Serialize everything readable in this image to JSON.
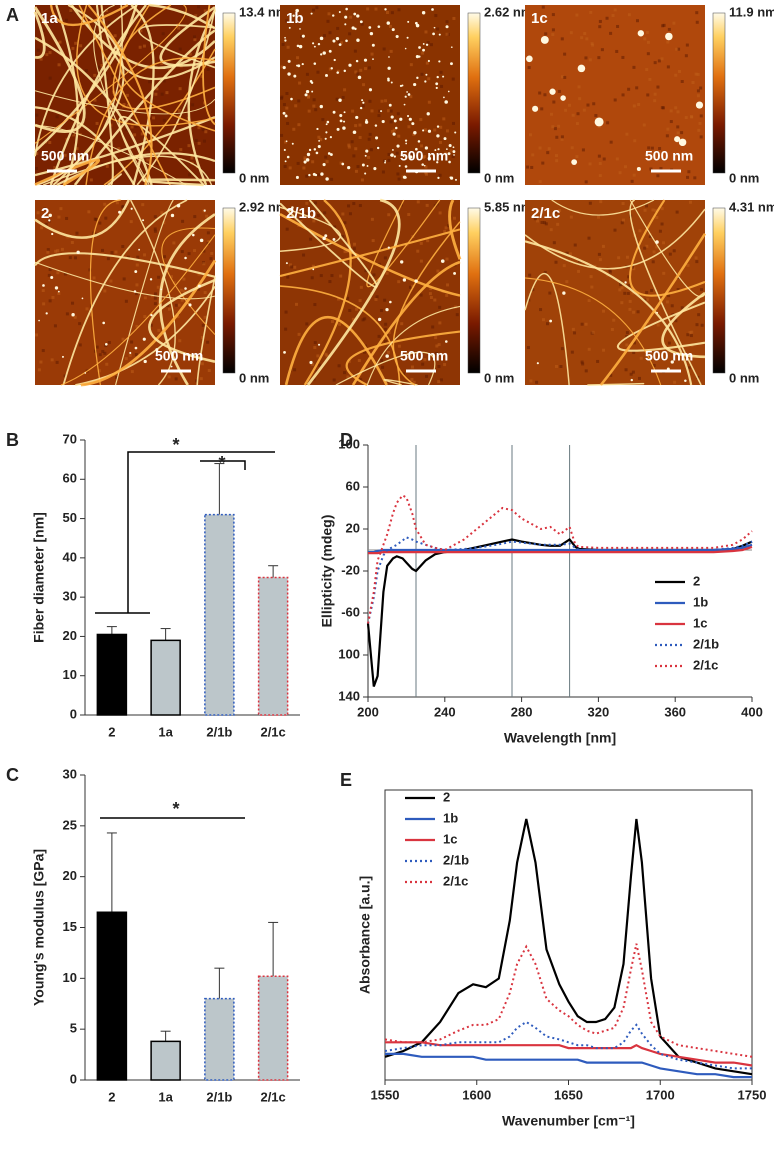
{
  "panel_a": {
    "label": "A",
    "images": [
      {
        "label": "1a",
        "max": "13.4 nm",
        "min": "0 nm",
        "scale": "500 nm"
      },
      {
        "label": "1b",
        "max": "2.62 nm",
        "min": "0 nm",
        "scale": "500 nm"
      },
      {
        "label": "1c",
        "max": "11.9 nm",
        "min": "0 nm",
        "scale": "500 nm"
      },
      {
        "label": "2",
        "max": "2.92 nm",
        "min": "0 nm",
        "scale": "500 nm"
      },
      {
        "label": "2/1b",
        "max": "5.85 nm",
        "min": "0 nm",
        "scale": "500 nm"
      },
      {
        "label": "2/1c",
        "max": "4.31 nm",
        "min": "0 nm",
        "scale": "500 nm"
      }
    ]
  },
  "chart_data": [
    {
      "type": "bar",
      "label": "B",
      "ylabel": "Fiber diameter [nm]",
      "categories": [
        "2",
        "1a",
        "2/1b",
        "2/1c"
      ],
      "values": [
        20.5,
        19,
        51,
        35
      ],
      "errors": [
        2,
        3,
        13,
        3
      ],
      "colors": [
        "#000000",
        "#bcc6ca",
        "#bcc6ca",
        "#bcc6ca"
      ],
      "edge_colors": [
        "#000000",
        "#000000",
        "#2e5bbd",
        "#d9343f"
      ],
      "edge_dashed": [
        false,
        false,
        true,
        true
      ],
      "ylim": [
        0,
        70
      ],
      "yticks": [
        0,
        10,
        20,
        30,
        40,
        50,
        60,
        70
      ],
      "annotations": [
        "*",
        "*"
      ]
    },
    {
      "type": "bar",
      "label": "C",
      "ylabel": "Young's modulus [GPa]",
      "categories": [
        "2",
        "1a",
        "2/1b",
        "2/1c"
      ],
      "values": [
        16.5,
        3.8,
        8,
        10.2
      ],
      "errors": [
        7.8,
        1,
        3,
        5.3
      ],
      "colors": [
        "#000000",
        "#bcc6ca",
        "#bcc6ca",
        "#bcc6ca"
      ],
      "edge_colors": [
        "#000000",
        "#000000",
        "#2e5bbd",
        "#d9343f"
      ],
      "edge_dashed": [
        false,
        false,
        true,
        true
      ],
      "ylim": [
        0,
        30
      ],
      "yticks": [
        0,
        5,
        10,
        15,
        20,
        25,
        30
      ],
      "annotations": [
        "*"
      ]
    },
    {
      "type": "line",
      "label": "D",
      "ylabel": "Ellipticity (mdeg)",
      "xlabel": "Wavelength [nm]",
      "x": [
        200,
        203,
        205,
        208,
        210,
        213,
        215,
        218,
        220,
        223,
        225,
        230,
        235,
        240,
        250,
        260,
        270,
        275,
        280,
        290,
        295,
        300,
        305,
        308,
        310,
        320,
        340,
        360,
        380,
        390,
        395,
        400
      ],
      "series": [
        {
          "name": "2",
          "color": "#000000",
          "dashed": false,
          "values": [
            -70,
            -130,
            -120,
            -40,
            -15,
            -8,
            -6,
            -8,
            -12,
            -18,
            -20,
            -10,
            -4,
            -2,
            0,
            4,
            8,
            10,
            8,
            5,
            4,
            4,
            10,
            3,
            1,
            0,
            0,
            0,
            0,
            1,
            4,
            8
          ]
        },
        {
          "name": "1b",
          "color": "#2e5bbd",
          "dashed": false,
          "values": [
            -2,
            -2,
            -1,
            0,
            0,
            0,
            0,
            0,
            0,
            0,
            0,
            0,
            0,
            0,
            0,
            0,
            0,
            0,
            0,
            0,
            0,
            0,
            0,
            0,
            0,
            0,
            0,
            0,
            0,
            1,
            2,
            5
          ]
        },
        {
          "name": "1c",
          "color": "#d9343f",
          "dashed": false,
          "values": [
            -3,
            -3,
            -3,
            -2,
            -2,
            -2,
            -2,
            -2,
            -2,
            -2,
            -2,
            -2,
            -2,
            -2,
            -2,
            -2,
            -2,
            -2,
            -2,
            -2,
            -2,
            -2,
            -2,
            -2,
            -2,
            -2,
            -2,
            -2,
            -2,
            -1,
            0,
            3
          ]
        },
        {
          "name": "2/1b",
          "color": "#2e5bbd",
          "dashed": true,
          "values": [
            -70,
            -45,
            -20,
            -5,
            0,
            3,
            5,
            9,
            12,
            10,
            8,
            5,
            2,
            0,
            1,
            3,
            6,
            8,
            7,
            5,
            5,
            5,
            6,
            2,
            0,
            0,
            0,
            0,
            0,
            2,
            4,
            8
          ]
        },
        {
          "name": "2/1c",
          "color": "#d9343f",
          "dashed": true,
          "values": [
            -70,
            -40,
            -10,
            5,
            15,
            35,
            45,
            52,
            50,
            35,
            20,
            5,
            2,
            0,
            10,
            25,
            40,
            38,
            30,
            20,
            22,
            15,
            22,
            5,
            3,
            2,
            2,
            2,
            2,
            5,
            10,
            18
          ]
        }
      ],
      "reference_lines": [
        225,
        275,
        305
      ],
      "xlim": [
        200,
        400
      ],
      "xticks": [
        200,
        240,
        280,
        320,
        360,
        400
      ],
      "ylim": [
        -140,
        100
      ],
      "yticks": [
        100,
        60,
        20,
        -20,
        -60,
        {
          "value": -100,
          "label": "100"
        },
        {
          "value": -140,
          "label": "140"
        }
      ]
    },
    {
      "type": "line",
      "label": "E",
      "ylabel": "Absorbance [a.u.]",
      "xlabel": "Wavenumber [cm⁻¹]",
      "x": [
        1550,
        1560,
        1570,
        1580,
        1590,
        1598,
        1605,
        1612,
        1618,
        1622,
        1627,
        1632,
        1638,
        1645,
        1650,
        1655,
        1660,
        1665,
        1670,
        1675,
        1680,
        1684,
        1687,
        1690,
        1695,
        1700,
        1710,
        1720,
        1730,
        1740,
        1750
      ],
      "series": [
        {
          "name": "2",
          "color": "#000000",
          "dashed": false,
          "values": [
            8,
            10,
            13,
            20,
            30,
            33,
            32,
            35,
            55,
            75,
            90,
            75,
            45,
            33,
            27,
            22,
            20,
            20,
            21,
            25,
            40,
            70,
            90,
            75,
            35,
            15,
            8,
            6,
            4,
            3,
            2
          ]
        },
        {
          "name": "1b",
          "color": "#2e5bbd",
          "dashed": false,
          "values": [
            9,
            9,
            8,
            8,
            8,
            8,
            7,
            7,
            7,
            7,
            7,
            7,
            7,
            7,
            7,
            7,
            6,
            6,
            6,
            6,
            6,
            6,
            6,
            6,
            5,
            4,
            3,
            2,
            2,
            1,
            1
          ]
        },
        {
          "name": "1c",
          "color": "#d9343f",
          "dashed": false,
          "values": [
            13,
            13,
            13,
            12,
            12,
            12,
            12,
            12,
            12,
            12,
            12,
            12,
            12,
            12,
            11,
            11,
            11,
            11,
            11,
            11,
            11,
            11,
            12,
            11,
            10,
            9,
            8,
            7,
            6,
            6,
            5
          ]
        },
        {
          "name": "2/1b",
          "color": "#2e5bbd",
          "dashed": true,
          "values": [
            10,
            11,
            12,
            12,
            13,
            13,
            13,
            13,
            15,
            18,
            20,
            18,
            15,
            14,
            13,
            12,
            12,
            11,
            11,
            11,
            13,
            17,
            19,
            16,
            12,
            9,
            7,
            6,
            5,
            4,
            4
          ]
        },
        {
          "name": "2/1c",
          "color": "#d9343f",
          "dashed": true,
          "values": [
            14,
            13,
            13,
            14,
            17,
            19,
            19,
            21,
            30,
            40,
            46,
            40,
            28,
            24,
            22,
            19,
            17,
            16,
            17,
            18,
            25,
            38,
            47,
            38,
            20,
            15,
            12,
            11,
            10,
            9,
            8
          ]
        }
      ],
      "xlim": [
        1550,
        1750
      ],
      "xticks": [
        1550,
        1600,
        1650,
        1700,
        1750
      ],
      "ylim": [
        0,
        100
      ]
    }
  ]
}
